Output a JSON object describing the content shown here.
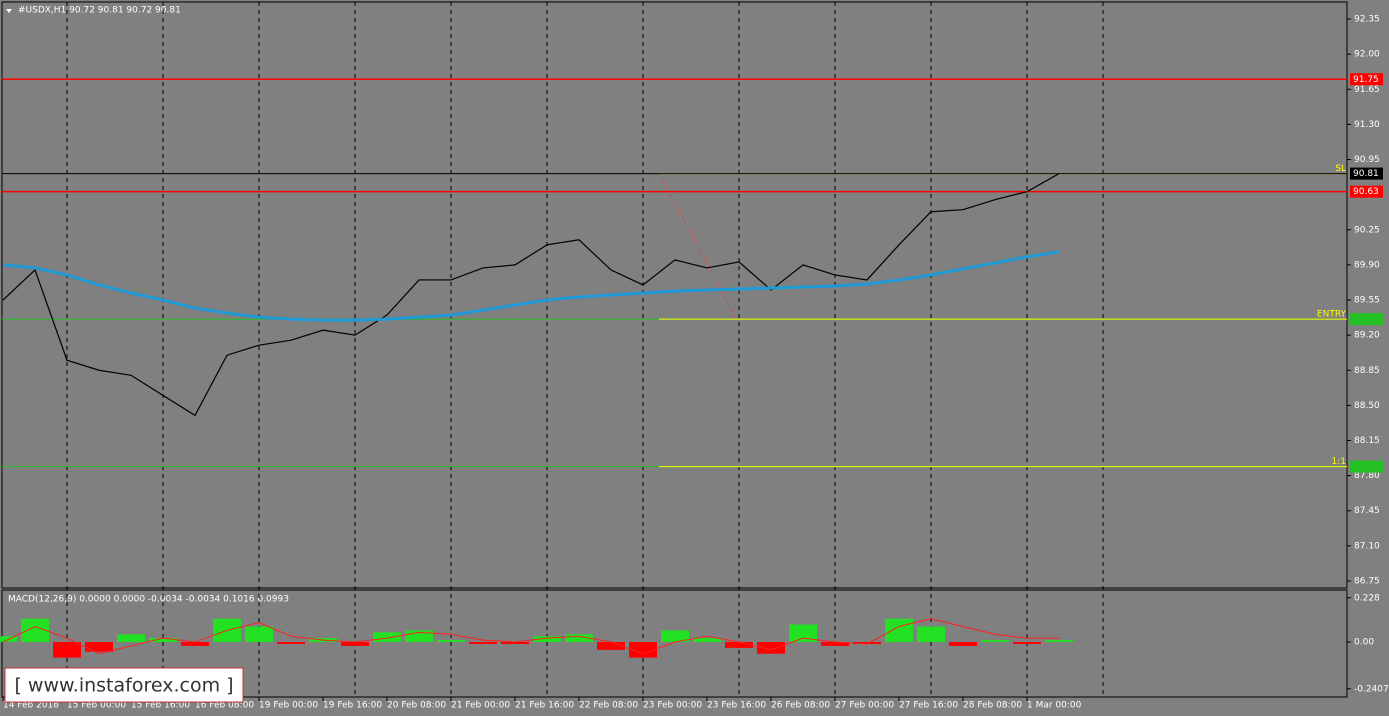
{
  "chart_data": {
    "type": "line",
    "title": "#USDX,H1  90.72 90.81 90.72 90.81",
    "categories": [
      "14 Feb 2018",
      null,
      "15 Feb 00:00",
      null,
      "15 Feb 16:00",
      null,
      "16 Feb 08:00",
      null,
      "19 Feb 00:00",
      null,
      "19 Feb 16:00",
      null,
      "20 Feb 08:00",
      null,
      "21 Feb 00:00",
      null,
      "21 Feb 16:00",
      null,
      "22 Feb 08:00",
      null,
      "23 Feb 00:00",
      null,
      "23 Feb 16:00",
      null,
      "26 Feb 08:00",
      null,
      "27 Feb 00:00",
      null,
      "27 Feb 16:00",
      null,
      "28 Feb 08:00",
      null,
      "1 Mar 00:00",
      null
    ],
    "series": [
      {
        "color": "#000000",
        "values": [
          89.55,
          89.85,
          88.95,
          88.85,
          88.8,
          88.6,
          88.4,
          89.0,
          89.1,
          89.15,
          89.25,
          89.2,
          89.4,
          89.75,
          89.75,
          89.87,
          89.9,
          90.1,
          90.15,
          89.85,
          89.7,
          89.95,
          89.87,
          89.93,
          89.65,
          89.9,
          89.8,
          89.75,
          90.1,
          90.43,
          90.45,
          90.55,
          90.63,
          90.81
        ]
      },
      {
        "color": "#1e9bd7",
        "values": [
          89.9,
          89.87,
          89.8,
          89.7,
          89.62,
          89.55,
          89.47,
          89.42,
          89.38,
          89.36,
          89.35,
          89.35,
          89.36,
          89.38,
          89.4,
          89.45,
          89.5,
          89.55,
          89.58,
          89.6,
          89.62,
          89.64,
          89.65,
          89.66,
          89.67,
          89.68,
          89.69,
          89.71,
          89.75,
          89.8,
          89.86,
          89.92,
          89.98,
          90.03
        ]
      }
    ],
    "ylim": [
      86.68,
      92.54
    ],
    "yticks": [
      92.35,
      {
        "value": 92,
        "label": "92.00"
      },
      91.65,
      {
        "value": 91.3,
        "label": "91.30"
      },
      90.95,
      90.25,
      {
        "value": 89.9,
        "label": "89.90"
      },
      89.55,
      {
        "value": 89.2,
        "label": "89.20"
      },
      88.85,
      {
        "value": 88.5,
        "label": "88.50"
      },
      88.15,
      {
        "value": 87.8,
        "label": "87.80"
      },
      87.45,
      {
        "value": 87.1,
        "label": "87.10"
      },
      86.75
    ],
    "grid": true,
    "levels": [
      {
        "value": 91.75,
        "color": "#ff0000"
      },
      {
        "value": 90.63,
        "color": "#ff0000"
      },
      {
        "value": 90.81,
        "color": "#000000"
      }
    ],
    "trade_lines": [
      {
        "name": "SL",
        "value": 90.81
      },
      {
        "name": "ENTRY",
        "value": 89.36
      },
      {
        "name": "1:1",
        "value": 87.89
      }
    ],
    "trade_color": "#ffff00",
    "zone_color": "#22c022",
    "macd": {
      "title": "MACD(12,26,9) 0.0000 0.0000 -0.0034 -0.0034 0.1016 0.0993",
      "ylim": [
        -0.283,
        0.268
      ],
      "yticks": [
        0.228,
        {
          "value": 0,
          "label": "0.00"
        },
        -0.2407
      ],
      "histogram": {
        "up_color": "#22e022",
        "down_color": "#ff0000",
        "values": [
          0.03,
          0.12,
          -0.08,
          -0.05,
          0.04,
          0.02,
          -0.02,
          0.12,
          0.08,
          -0.01,
          0.02,
          -0.02,
          0.05,
          0.06,
          0.01,
          -0.01,
          -0.01,
          0.03,
          0.04,
          -0.04,
          -0.08,
          0.06,
          0.02,
          -0.03,
          -0.06,
          0.09,
          -0.02,
          -0.01,
          0.12,
          0.08,
          -0.02,
          0.01,
          -0.01,
          0.01
        ]
      },
      "signal": {
        "color": "#ff2020",
        "values": [
          0.0,
          0.08,
          0.02,
          -0.06,
          -0.02,
          0.02,
          0.0,
          0.06,
          0.1,
          0.03,
          0.01,
          0.0,
          0.02,
          0.05,
          0.04,
          0.01,
          0.0,
          0.02,
          0.03,
          0.0,
          -0.06,
          0.0,
          0.03,
          0.0,
          -0.04,
          0.02,
          0.0,
          -0.01,
          0.08,
          0.12,
          0.08,
          0.04,
          0.02,
          0.02
        ]
      }
    },
    "watermark": "[  www.instaforex.com ]"
  }
}
